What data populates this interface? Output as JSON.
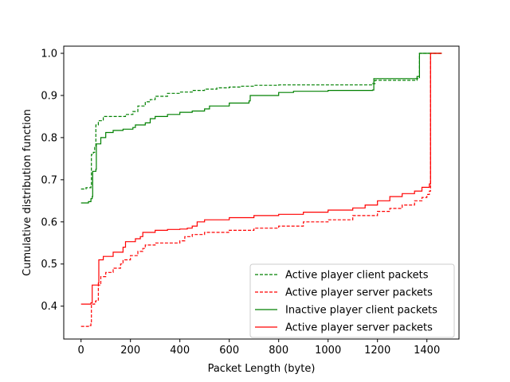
{
  "chart_data": {
    "type": "line",
    "xlabel": "Packet Length (byte)",
    "ylabel": "Cumulative distribution function",
    "xlim": [
      -70,
      1530
    ],
    "ylim": [
      0.322,
      1.017
    ],
    "x_ticks": [
      0,
      200,
      400,
      600,
      800,
      1000,
      1200,
      1400
    ],
    "y_ticks": [
      0.4,
      0.5,
      0.6,
      0.7,
      0.8,
      0.9,
      1.0
    ],
    "x_tick_labels": [
      "0",
      "200",
      "400",
      "600",
      "800",
      "1000",
      "1200",
      "1400"
    ],
    "y_tick_labels": [
      "0.4",
      "0.5",
      "0.6",
      "0.7",
      "0.8",
      "0.9",
      "1.0"
    ],
    "grid": false,
    "legend_position": "lower right",
    "series": [
      {
        "name": "Active player client packets",
        "color": "#008000",
        "dash": "dashed",
        "points": [
          [
            0,
            0.678
          ],
          [
            20,
            0.681
          ],
          [
            40,
            0.685
          ],
          [
            42,
            0.76
          ],
          [
            50,
            0.765
          ],
          [
            55,
            0.78
          ],
          [
            60,
            0.83
          ],
          [
            70,
            0.84
          ],
          [
            90,
            0.85
          ],
          [
            180,
            0.855
          ],
          [
            210,
            0.862
          ],
          [
            230,
            0.875
          ],
          [
            260,
            0.885
          ],
          [
            280,
            0.89
          ],
          [
            300,
            0.898
          ],
          [
            350,
            0.905
          ],
          [
            400,
            0.908
          ],
          [
            450,
            0.912
          ],
          [
            500,
            0.915
          ],
          [
            550,
            0.918
          ],
          [
            600,
            0.92
          ],
          [
            650,
            0.922
          ],
          [
            700,
            0.924
          ],
          [
            800,
            0.925
          ],
          [
            1000,
            0.925
          ],
          [
            1180,
            0.928
          ],
          [
            1190,
            0.936
          ],
          [
            1360,
            0.94
          ],
          [
            1370,
            1.0
          ],
          [
            1460,
            1.0
          ]
        ]
      },
      {
        "name": "Active player server packets",
        "color": "#ff0000",
        "dash": "dashed",
        "points": [
          [
            0,
            0.352
          ],
          [
            30,
            0.354
          ],
          [
            40,
            0.358
          ],
          [
            42,
            0.405
          ],
          [
            55,
            0.41
          ],
          [
            60,
            0.413
          ],
          [
            70,
            0.45
          ],
          [
            80,
            0.47
          ],
          [
            100,
            0.48
          ],
          [
            130,
            0.49
          ],
          [
            160,
            0.5
          ],
          [
            170,
            0.51
          ],
          [
            200,
            0.52
          ],
          [
            230,
            0.53
          ],
          [
            250,
            0.537
          ],
          [
            260,
            0.545
          ],
          [
            300,
            0.55
          ],
          [
            400,
            0.555
          ],
          [
            420,
            0.565
          ],
          [
            450,
            0.57
          ],
          [
            500,
            0.575
          ],
          [
            600,
            0.58
          ],
          [
            700,
            0.585
          ],
          [
            800,
            0.59
          ],
          [
            900,
            0.6
          ],
          [
            1000,
            0.605
          ],
          [
            1100,
            0.615
          ],
          [
            1200,
            0.625
          ],
          [
            1250,
            0.632
          ],
          [
            1300,
            0.64
          ],
          [
            1350,
            0.65
          ],
          [
            1380,
            0.658
          ],
          [
            1400,
            0.665
          ],
          [
            1410,
            0.673
          ],
          [
            1415,
            1.0
          ],
          [
            1460,
            1.0
          ]
        ]
      },
      {
        "name": "Inactive player client packets",
        "color": "#008000",
        "dash": "solid",
        "points": [
          [
            0,
            0.645
          ],
          [
            30,
            0.648
          ],
          [
            40,
            0.655
          ],
          [
            45,
            0.66
          ],
          [
            47,
            0.72
          ],
          [
            60,
            0.725
          ],
          [
            62,
            0.785
          ],
          [
            80,
            0.8
          ],
          [
            100,
            0.812
          ],
          [
            130,
            0.817
          ],
          [
            170,
            0.82
          ],
          [
            210,
            0.824
          ],
          [
            220,
            0.83
          ],
          [
            260,
            0.835
          ],
          [
            280,
            0.845
          ],
          [
            300,
            0.85
          ],
          [
            350,
            0.855
          ],
          [
            400,
            0.86
          ],
          [
            450,
            0.863
          ],
          [
            500,
            0.868
          ],
          [
            520,
            0.875
          ],
          [
            600,
            0.882
          ],
          [
            680,
            0.887
          ],
          [
            685,
            0.9
          ],
          [
            800,
            0.907
          ],
          [
            860,
            0.91
          ],
          [
            1000,
            0.912
          ],
          [
            1180,
            0.913
          ],
          [
            1185,
            0.94
          ],
          [
            1360,
            0.945
          ],
          [
            1370,
            1.0
          ],
          [
            1460,
            1.0
          ]
        ]
      },
      {
        "name": "Active player server packets",
        "color": "#ff0000",
        "dash": "solid",
        "points": [
          [
            0,
            0.405
          ],
          [
            40,
            0.408
          ],
          [
            45,
            0.45
          ],
          [
            70,
            0.455
          ],
          [
            72,
            0.51
          ],
          [
            90,
            0.518
          ],
          [
            130,
            0.528
          ],
          [
            170,
            0.54
          ],
          [
            180,
            0.553
          ],
          [
            220,
            0.56
          ],
          [
            240,
            0.565
          ],
          [
            250,
            0.575
          ],
          [
            300,
            0.58
          ],
          [
            350,
            0.582
          ],
          [
            400,
            0.583
          ],
          [
            430,
            0.585
          ],
          [
            450,
            0.59
          ],
          [
            470,
            0.6
          ],
          [
            500,
            0.605
          ],
          [
            600,
            0.61
          ],
          [
            700,
            0.615
          ],
          [
            800,
            0.618
          ],
          [
            900,
            0.623
          ],
          [
            1000,
            0.628
          ],
          [
            1100,
            0.633
          ],
          [
            1150,
            0.64
          ],
          [
            1200,
            0.65
          ],
          [
            1250,
            0.66
          ],
          [
            1300,
            0.667
          ],
          [
            1350,
            0.673
          ],
          [
            1380,
            0.682
          ],
          [
            1410,
            0.69
          ],
          [
            1415,
            1.0
          ],
          [
            1460,
            1.0
          ]
        ]
      }
    ]
  }
}
